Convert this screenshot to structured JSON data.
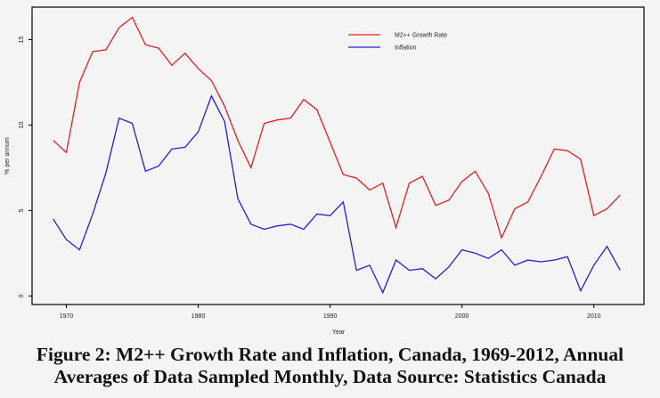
{
  "chart_data": {
    "type": "line",
    "title": "",
    "xlabel": "Year",
    "ylabel": "% per annum",
    "xlim": [
      1967.4,
      2013.8
    ],
    "ylim": [
      -0.5,
      16.9
    ],
    "x_ticks": [
      1970,
      1980,
      1990,
      2000,
      2010
    ],
    "y_ticks": [
      0,
      5,
      10,
      15
    ],
    "grid": false,
    "legend_placement": "top-center",
    "x": [
      1969,
      1970,
      1971,
      1972,
      1973,
      1974,
      1975,
      1976,
      1977,
      1978,
      1979,
      1980,
      1981,
      1982,
      1983,
      1984,
      1985,
      1986,
      1987,
      1988,
      1989,
      1990,
      1991,
      1992,
      1993,
      1994,
      1995,
      1996,
      1997,
      1998,
      1999,
      2000,
      2001,
      2002,
      2003,
      2004,
      2005,
      2006,
      2007,
      2008,
      2009,
      2010,
      2011,
      2012
    ],
    "series": [
      {
        "name": "M2++ Growth Rate",
        "color": "#e02020",
        "values": [
          9.1,
          8.4,
          12.5,
          14.3,
          14.4,
          15.7,
          16.3,
          14.7,
          14.5,
          13.5,
          14.2,
          13.3,
          12.6,
          11.1,
          9.1,
          7.5,
          10.1,
          10.3,
          10.4,
          11.5,
          10.9,
          9.0,
          7.1,
          6.9,
          6.2,
          6.6,
          4.0,
          6.6,
          7.0,
          5.3,
          5.6,
          6.7,
          7.3,
          6.0,
          3.4,
          5.1,
          5.5,
          7.0,
          8.6,
          8.5,
          8.0,
          4.7,
          5.1,
          5.9
        ]
      },
      {
        "name": "Inflation",
        "color": "#2020d0",
        "values": [
          4.5,
          3.3,
          2.7,
          4.8,
          7.2,
          10.4,
          10.1,
          7.3,
          7.6,
          8.6,
          8.7,
          9.6,
          11.7,
          10.2,
          5.7,
          4.2,
          3.9,
          4.1,
          4.2,
          3.9,
          4.8,
          4.7,
          5.5,
          1.5,
          1.8,
          0.2,
          2.1,
          1.5,
          1.6,
          1.0,
          1.7,
          2.7,
          2.5,
          2.2,
          2.7,
          1.8,
          2.1,
          2.0,
          2.1,
          2.3,
          0.3,
          1.8,
          2.9,
          1.5
        ]
      }
    ]
  },
  "caption": {
    "line1": "Figure 2: M2++ Growth Rate and Inflation, Canada, 1969-2012, Annual",
    "line2": "Averages of Data Sampled Monthly, Data Source: Statistics Canada"
  }
}
